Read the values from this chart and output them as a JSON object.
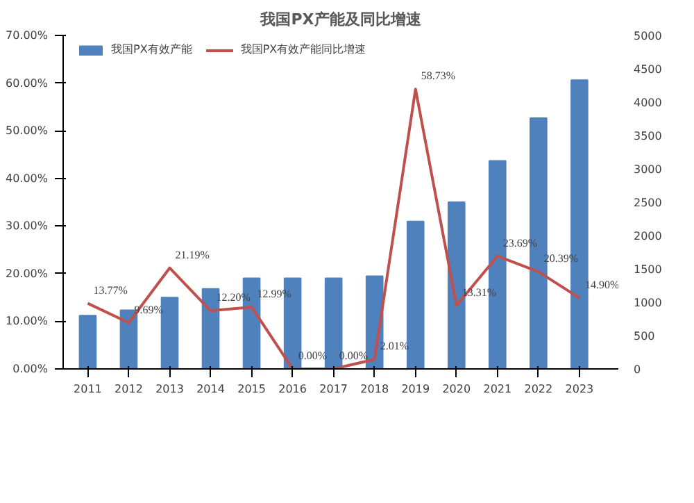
{
  "chart_data": {
    "type": "bar",
    "title": "我国PX产能及同比增速",
    "categories": [
      "2011",
      "2012",
      "2013",
      "2014",
      "2015",
      "2016",
      "2017",
      "2018",
      "2019",
      "2020",
      "2021",
      "2022",
      "2023"
    ],
    "series": [
      {
        "name": "我国PX有效产能",
        "axis": "y2",
        "color": "#4f81bd",
        "values": [
          800,
          880,
          1070,
          1200,
          1360,
          1360,
          1360,
          1390,
          2210,
          2500,
          3120,
          3760,
          4330
        ]
      },
      {
        "name": "我国PX有效产能同比增速",
        "type": "line",
        "color": "#c0504d",
        "values": [
          13.77,
          9.69,
          21.19,
          12.2,
          12.99,
          0.0,
          0.0,
          2.01,
          58.73,
          13.31,
          23.69,
          20.39,
          14.9
        ],
        "value_labels": [
          "13.77%",
          "9.69%",
          "21.19%",
          "12.20%",
          "12.99%",
          "0.00%",
          "0.00%",
          "2.01%",
          "58.73%",
          "13.31%",
          "23.69%",
          "20.39%",
          "14.90%"
        ]
      }
    ],
    "ylim": [
      0,
      70
    ],
    "yticks": [
      {
        "value": 0,
        "label": "0.00%"
      },
      {
        "value": 10,
        "label": "10.00%"
      },
      {
        "value": 20,
        "label": "20.00%"
      },
      {
        "value": 30,
        "label": "30.00%"
      },
      {
        "value": 40,
        "label": "40.00%"
      },
      {
        "value": 50,
        "label": "50.00%"
      },
      {
        "value": 60,
        "label": "60.00%"
      },
      {
        "value": 70,
        "label": "70.00%"
      }
    ],
    "y2lim": [
      0,
      5000
    ],
    "y2ticks": [
      0,
      500,
      1000,
      1500,
      2000,
      2500,
      3000,
      3500,
      4000,
      4500,
      5000
    ],
    "legend": "top",
    "grid": false
  }
}
